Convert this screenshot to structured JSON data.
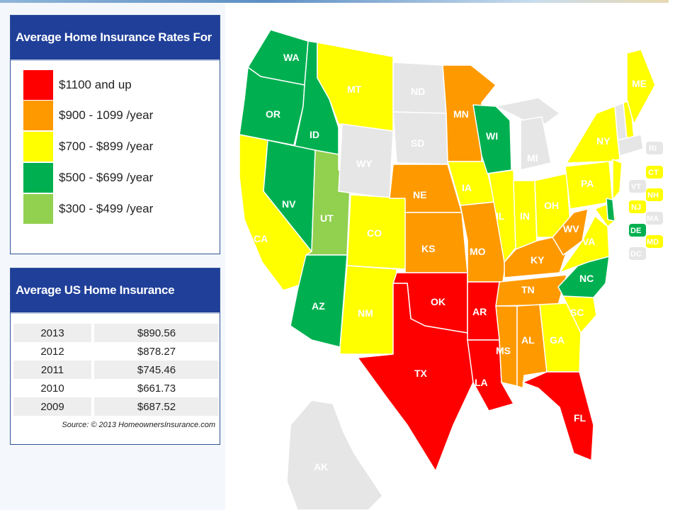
{
  "legend": {
    "title": "Average Home Insurance Rates For US States",
    "items": [
      {
        "label": "$1100 and up",
        "color": "#ff0000"
      },
      {
        "label": "$900 - 1099 /year",
        "color": "#ff9900"
      },
      {
        "label": "$700 - $899 /year",
        "color": "#ffff00"
      },
      {
        "label": "$500 - $699 /year",
        "color": "#00b050"
      },
      {
        "label": "$300 - $499 /year",
        "color": "#92d050"
      }
    ]
  },
  "premiums": {
    "title": "Average US Home Insurance Premiums",
    "rows": [
      {
        "year": "2013",
        "value": "$890.56"
      },
      {
        "year": "2012",
        "value": "$878.27"
      },
      {
        "year": "2011",
        "value": "$745.46"
      },
      {
        "year": "2010",
        "value": "$661.73"
      },
      {
        "year": "2009",
        "value": "$687.52"
      }
    ],
    "source": "Source: © 2013 HomeownersInsurance.com"
  },
  "colors": {
    "red": "#ff0000",
    "orange": "#ff9900",
    "yellow": "#ffff00",
    "green": "#00b050",
    "lightgreen": "#92d050",
    "gray": "#e6e6e6"
  },
  "states": {
    "WA": "WA",
    "OR": "OR",
    "CA": "CA",
    "ID": "ID",
    "NV": "NV",
    "AZ": "AZ",
    "UT": "UT",
    "MT": "MT",
    "WY": "WY",
    "CO": "CO",
    "NM": "NM",
    "ND": "ND",
    "SD": "SD",
    "NE": "NE",
    "KS": "KS",
    "OK": "OK",
    "TX": "TX",
    "MN": "MN",
    "IA": "IA",
    "MO": "MO",
    "AR": "AR",
    "LA": "LA",
    "WI": "WI",
    "IL": "IL",
    "MI": "MI",
    "IN": "IN",
    "OH": "OH",
    "KY": "KY",
    "TN": "TN",
    "MS": "MS",
    "AL": "AL",
    "GA": "GA",
    "FL": "FL",
    "SC": "SC",
    "NC": "NC",
    "VA": "VA",
    "WV": "WV",
    "PA": "PA",
    "NY": "NY",
    "ME": "ME",
    "AK": "AK"
  },
  "badges": {
    "RI": "RI",
    "CT": "CT",
    "VT": "VT",
    "NH": "NH",
    "NJ": "NJ",
    "MA": "MA",
    "DE": "DE",
    "MD": "MD",
    "DC": "DC"
  }
}
